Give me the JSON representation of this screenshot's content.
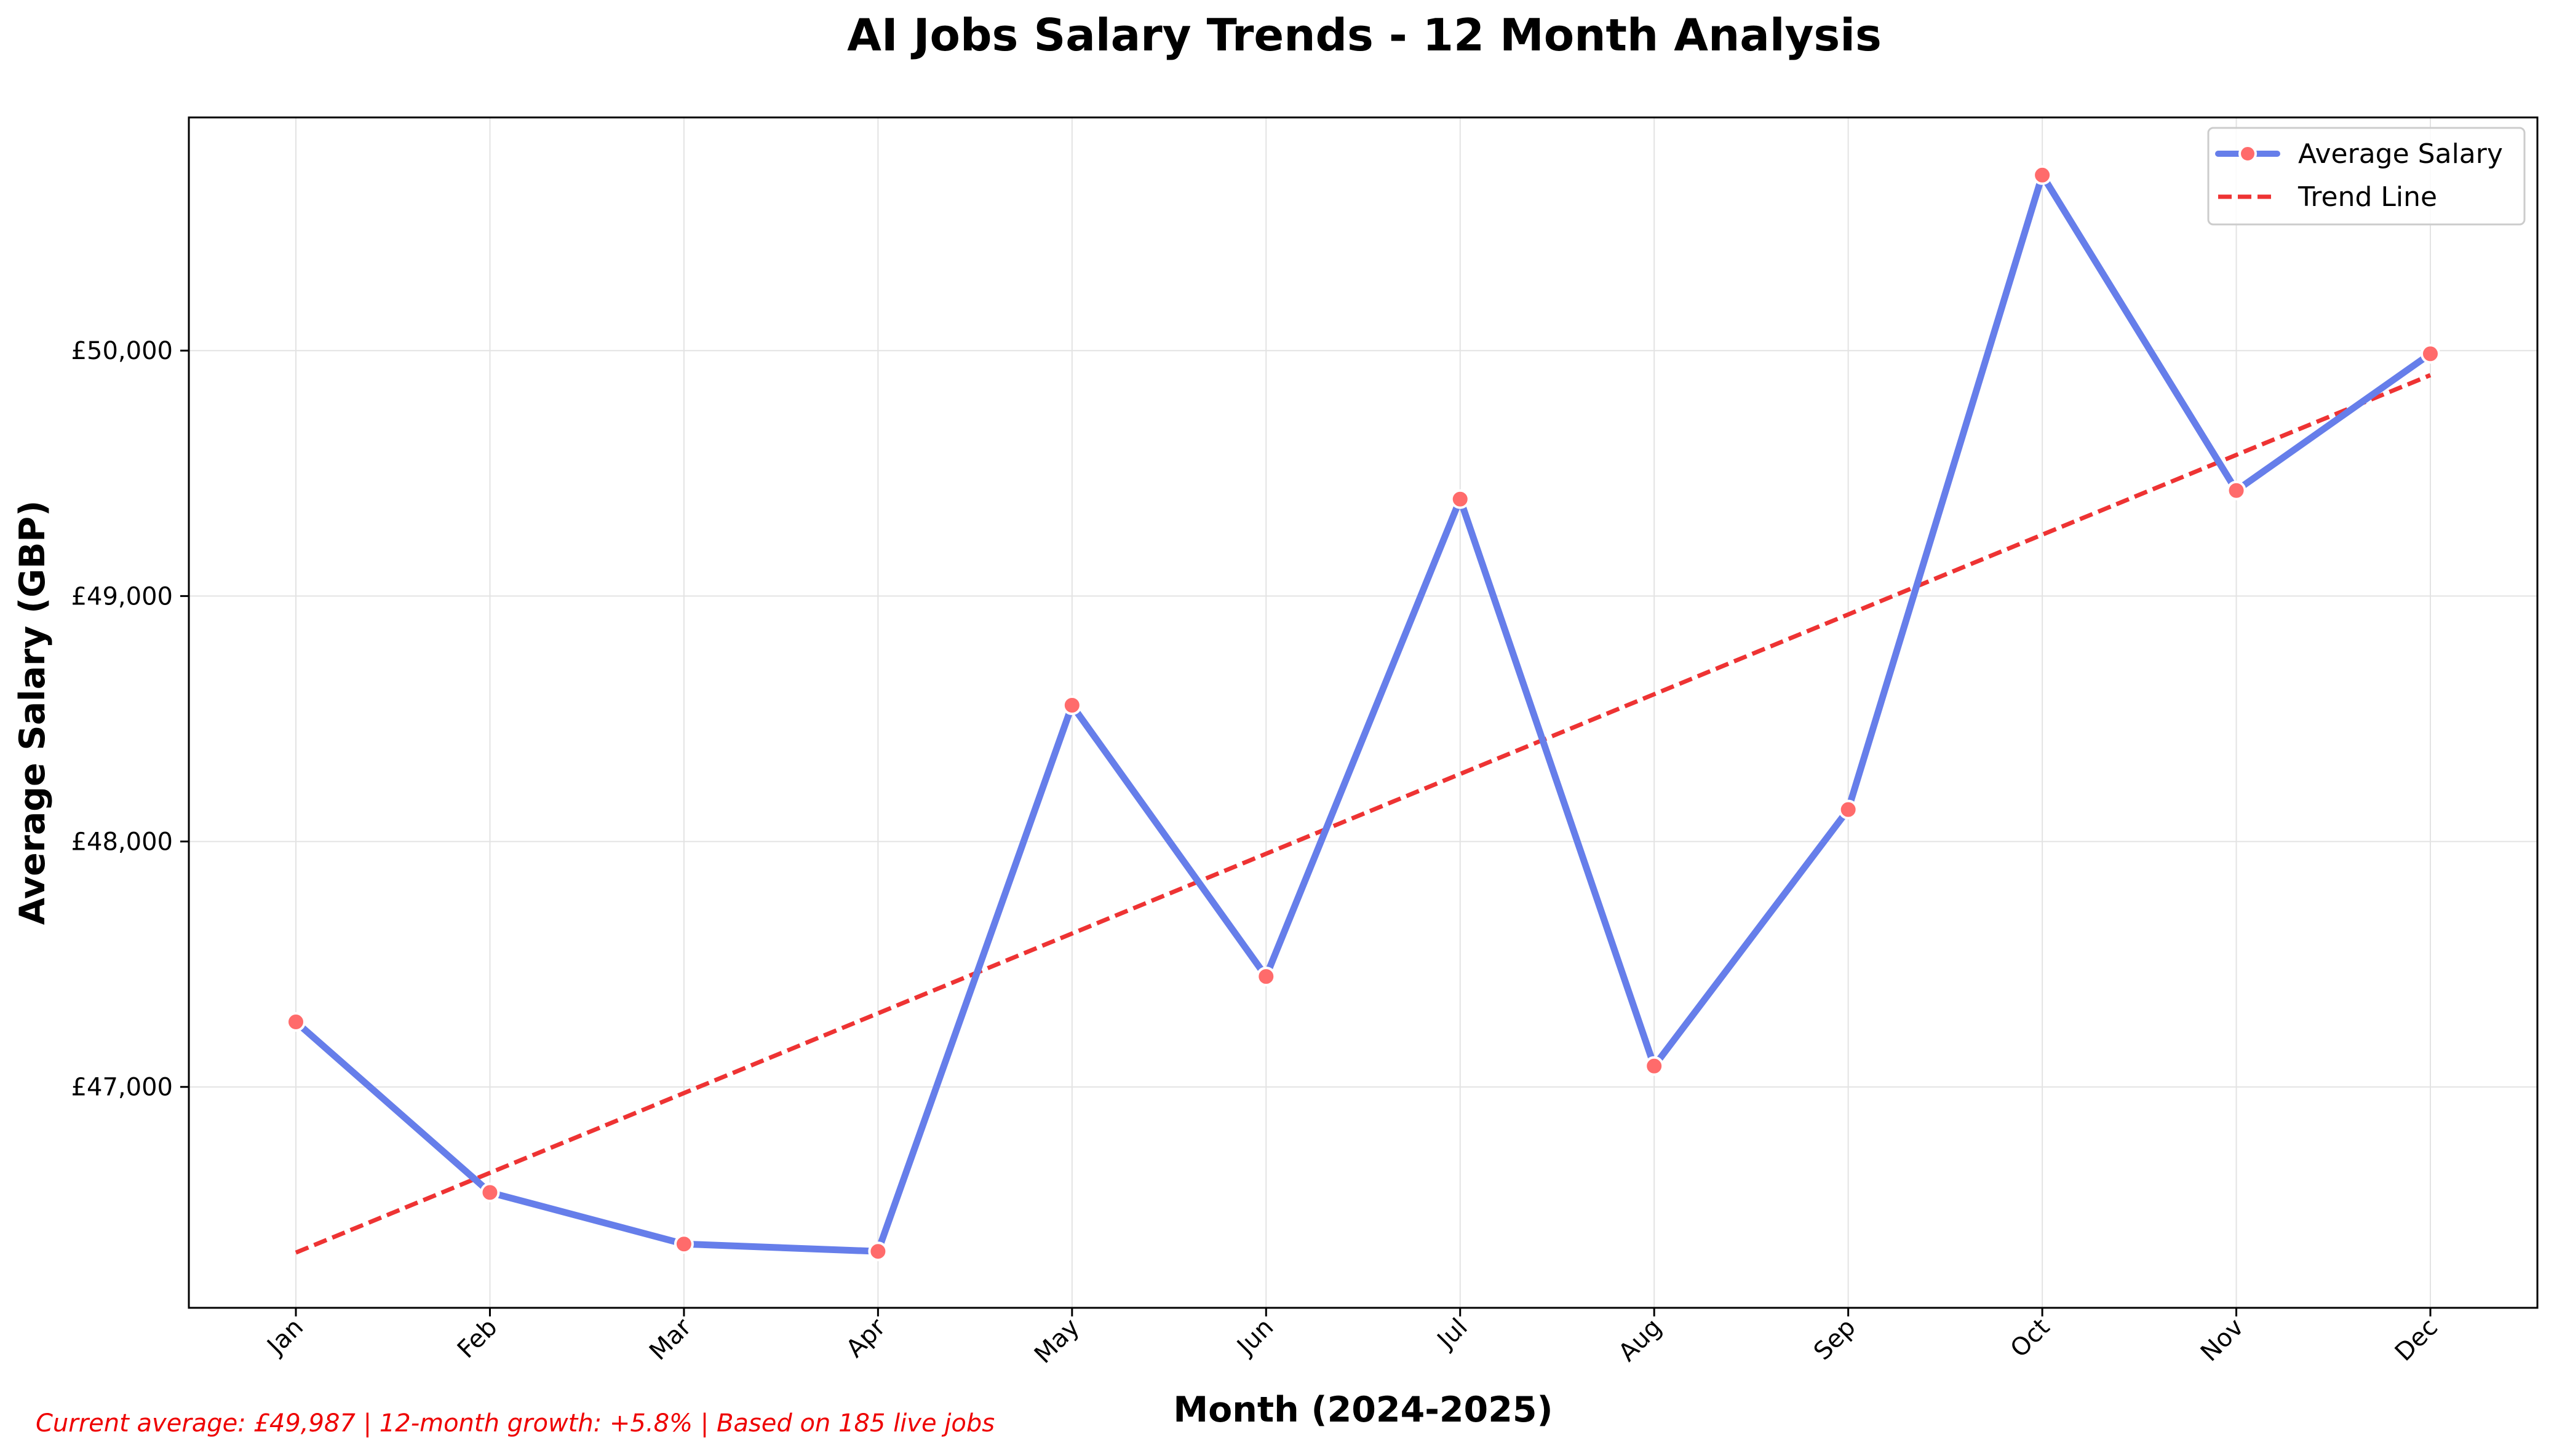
{
  "colors": {
    "series_line": "#667eea",
    "marker": "#ff6b6b",
    "trend": "#ee3333",
    "footnote": "#ee0000",
    "grid": "#e3e3e3"
  },
  "chart_data": {
    "type": "line",
    "title": "AI Jobs Salary Trends - 12 Month Analysis",
    "xlabel": "Month (2024-2025)",
    "ylabel": "Average Salary (GBP)",
    "categories": [
      "Jan",
      "Feb",
      "Mar",
      "Apr",
      "May",
      "Jun",
      "Jul",
      "Aug",
      "Sep",
      "Oct",
      "Nov",
      "Dec"
    ],
    "ylim": [
      46100,
      50950
    ],
    "yticks": [
      47000,
      48000,
      49000,
      50000
    ],
    "ytick_labels": [
      "£47,000",
      "£48,000",
      "£49,000",
      "£50,000"
    ],
    "grid": true,
    "legend_position": "top-right",
    "series": [
      {
        "name": "Average Salary",
        "style": "solid line with circle markers",
        "values": [
          47265,
          46570,
          46360,
          46330,
          48555,
          47450,
          49395,
          47085,
          48130,
          50715,
          49430,
          49987
        ]
      },
      {
        "name": "Trend Line",
        "style": "dashed",
        "values": [
          46325,
          46650,
          46975,
          47300,
          47625,
          47950,
          48275,
          48600,
          48925,
          49250,
          49575,
          49900
        ]
      }
    ],
    "annotation": "Current average: £49,987 | 12-month growth: +5.8% | Based on 185 live jobs"
  }
}
